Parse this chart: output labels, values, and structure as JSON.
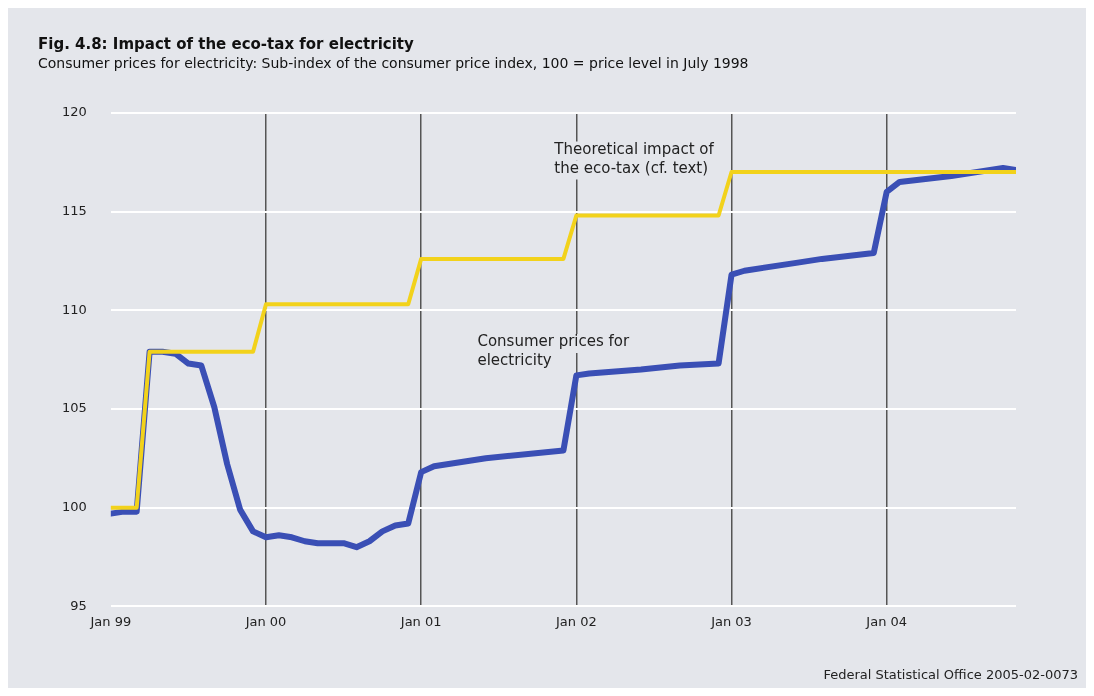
{
  "chart_data": {
    "type": "line",
    "title": "Fig. 4.8: Impact of the eco-tax for electricity",
    "subtitle": "Consumer prices for electricity: Sub-index of the consumer price index, 100 = price level in July 1998",
    "series": [
      {
        "name": "Theoretical impact of the eco-tax (cf. text)",
        "color": "#f2d21b",
        "x": [
          "1999-01",
          "1999-02",
          "1999-03",
          "1999-04",
          "1999-12",
          "2000-01",
          "2000-12",
          "2001-01",
          "2001-12",
          "2002-01",
          "2002-12",
          "2003-01",
          "2004-11"
        ],
        "values": [
          100,
          100,
          100,
          107.9,
          107.9,
          110.3,
          110.3,
          112.6,
          112.6,
          114.8,
          114.8,
          117.0,
          117.0
        ]
      },
      {
        "name": "Consumer prices for electricity",
        "color": "#3a4fb5",
        "x": [
          "1999-01",
          "1999-02",
          "1999-03",
          "1999-04",
          "1999-05",
          "1999-06",
          "1999-07",
          "1999-08",
          "1999-09",
          "1999-10",
          "1999-11",
          "1999-12",
          "2000-01",
          "2000-02",
          "2000-03",
          "2000-04",
          "2000-05",
          "2000-06",
          "2000-07",
          "2000-08",
          "2000-09",
          "2000-10",
          "2000-11",
          "2000-12",
          "2001-01",
          "2001-02",
          "2001-06",
          "2001-12",
          "2002-01",
          "2002-02",
          "2002-06",
          "2002-09",
          "2002-12",
          "2003-01",
          "2003-02",
          "2003-06",
          "2003-08",
          "2003-12",
          "2004-01",
          "2004-02",
          "2004-06",
          "2004-10",
          "2004-11"
        ],
        "values": [
          99.7,
          99.8,
          99.8,
          107.9,
          107.9,
          107.8,
          107.3,
          107.2,
          105.1,
          102.2,
          99.9,
          98.8,
          98.5,
          98.6,
          98.5,
          98.3,
          98.2,
          98.2,
          98.2,
          98.0,
          98.3,
          98.8,
          99.1,
          99.2,
          101.8,
          102.1,
          102.5,
          102.9,
          106.7,
          106.8,
          107.0,
          107.2,
          107.3,
          111.8,
          112.0,
          112.4,
          112.6,
          112.9,
          116.0,
          116.5,
          116.8,
          117.2,
          117.1
        ]
      }
    ],
    "xlim": [
      "1999-01",
      "2004-11"
    ],
    "xticks": [
      {
        "value": "1999-01",
        "label": "Jan 99"
      },
      {
        "value": "2000-01",
        "label": "Jan 00"
      },
      {
        "value": "2001-01",
        "label": "Jan 01"
      },
      {
        "value": "2002-01",
        "label": "Jan 02"
      },
      {
        "value": "2003-01",
        "label": "Jan 03"
      },
      {
        "value": "2004-01",
        "label": "Jan 04"
      }
    ],
    "ylim": [
      95,
      120
    ],
    "yticks": [
      95,
      100,
      105,
      110,
      115,
      120
    ],
    "grid": true,
    "legend": false,
    "marker": "none",
    "line_style": "solid",
    "annotations": [
      "Federal Statistical Office 2005-02-0073"
    ]
  }
}
